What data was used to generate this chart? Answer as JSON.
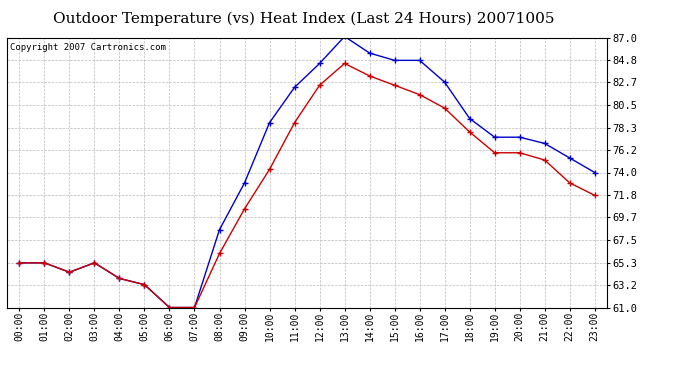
{
  "title": "Outdoor Temperature (vs) Heat Index (Last 24 Hours) 20071005",
  "copyright_text": "Copyright 2007 Cartronics.com",
  "hours": [
    "00:00",
    "01:00",
    "02:00",
    "03:00",
    "04:00",
    "05:00",
    "06:00",
    "07:00",
    "08:00",
    "09:00",
    "10:00",
    "11:00",
    "12:00",
    "13:00",
    "14:00",
    "15:00",
    "16:00",
    "17:00",
    "18:00",
    "19:00",
    "20:00",
    "21:00",
    "22:00",
    "23:00"
  ],
  "temp": [
    65.3,
    65.3,
    64.4,
    65.3,
    63.8,
    63.2,
    61.0,
    61.0,
    66.2,
    70.5,
    74.3,
    78.8,
    82.4,
    84.5,
    83.3,
    82.4,
    81.5,
    80.2,
    77.9,
    75.9,
    75.9,
    75.2,
    73.0,
    71.8
  ],
  "heat_index": [
    65.3,
    65.3,
    64.4,
    65.3,
    63.8,
    63.2,
    61.0,
    61.0,
    68.5,
    73.0,
    78.8,
    82.2,
    84.5,
    87.1,
    85.5,
    84.8,
    84.8,
    82.7,
    79.2,
    77.4,
    77.4,
    76.8,
    75.4,
    74.0
  ],
  "temp_color": "#cc0000",
  "heat_color": "#0000cc",
  "ylim_min": 61.0,
  "ylim_max": 87.0,
  "yticks": [
    61.0,
    63.2,
    65.3,
    67.5,
    69.7,
    71.8,
    74.0,
    76.2,
    78.3,
    80.5,
    82.7,
    84.8,
    87.0
  ],
  "bg_color": "#ffffff",
  "plot_bg": "#ffffff",
  "grid_color": "#bbbbbb",
  "title_fontsize": 11,
  "copyright_fontsize": 6.5,
  "tick_fontsize": 7,
  "ytick_fontsize": 7.5
}
